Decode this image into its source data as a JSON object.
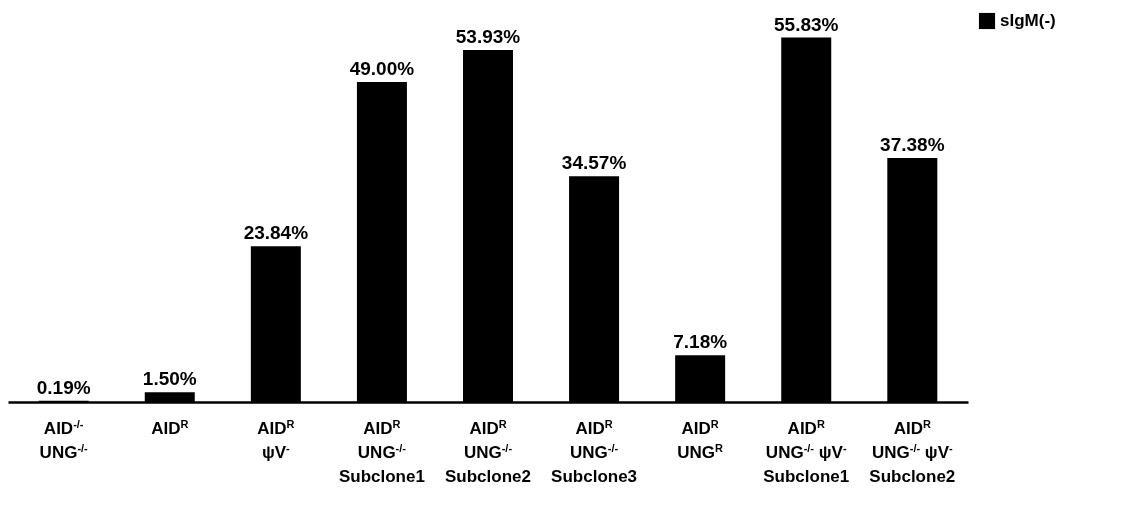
{
  "chart_data": {
    "type": "bar",
    "categories": [
      "AID$^{-/-}$\nUNG$^{-/-}$",
      "AID$^{R}$",
      "AID$^{R}$\nψV$^{-}$",
      "AID$^{R}$\nUNG$^{-/-}$\nSubclone1",
      "AID$^{R}$\nUNG$^{-/-}$\nSubclone2",
      "AID$^{R}$\nUNG$^{-/-}$\nSubclone3",
      "AID$^{R}$\nUNG$^{R}$",
      "AID$^{R}$\nUNG$^{-/-}$ ψV$^{-}$\nSubclone1",
      "AID$^{R}$\nUNG$^{-/-}$ ψV$^{-}$\nSubclone2"
    ],
    "series": [
      {
        "name": "sIgM(-)",
        "color": "#000000",
        "values": [
          0.19,
          1.5,
          23.84,
          49.0,
          53.93,
          34.57,
          7.18,
          55.83,
          37.38
        ],
        "value_labels": [
          "0.19%",
          "1.50%",
          "23.84%",
          "49.00%",
          "53.93%",
          "34.57%",
          "7.18%",
          "55.83%",
          "37.38%"
        ]
      }
    ],
    "legend": "top right",
    "grid": false
  }
}
